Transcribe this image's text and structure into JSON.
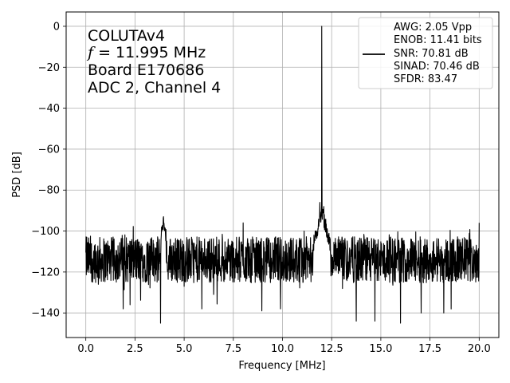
{
  "chart_data": {
    "type": "line",
    "xlabel": "Frequency [MHz]",
    "ylabel": "PSD [dB]",
    "xlim": [
      -1.0,
      21.0
    ],
    "ylim": [
      -152,
      7
    ],
    "xticks": [
      0.0,
      2.5,
      5.0,
      7.5,
      10.0,
      12.5,
      15.0,
      17.5,
      20.0
    ],
    "xtick_labels": [
      "0.0",
      "2.5",
      "5.0",
      "7.5",
      "10.0",
      "12.5",
      "15.0",
      "17.5",
      "20.0"
    ],
    "yticks": [
      0,
      -20,
      -40,
      -60,
      -80,
      -100,
      -120,
      -140
    ],
    "ytick_labels": [
      "0",
      "−20",
      "−40",
      "−60",
      "−80",
      "−100",
      "−120",
      "−140"
    ],
    "grid": true,
    "legend": {
      "placement": "upper-right",
      "entries": [
        "AWG: 2.05 Vpp",
        "ENOB: 11.41 bits",
        "SNR: 70.81 dB",
        "SINAD: 70.46 dB",
        "SFDR: 83.47"
      ]
    },
    "annotation": {
      "line1": "COLUTAv4",
      "line2_italic": "f",
      "line2_rest": " = 11.995 MHz",
      "line3": "Board E170686",
      "line4": "ADC 2, Channel 4"
    },
    "series": [
      {
        "color": "#000000",
        "noise_floor_db": -114,
        "noise_band_db": [
          -128,
          -103
        ],
        "x_range": [
          0.0,
          20.0
        ],
        "features": [
          {
            "x": 11.995,
            "y": 0
          },
          {
            "x": 11.9,
            "y": -86
          },
          {
            "x": 12.1,
            "y": -88
          },
          {
            "x": 3.95,
            "y": -93
          },
          {
            "x": 3.85,
            "y": -98
          },
          {
            "x": 8.0,
            "y": -96
          },
          {
            "x": 20.0,
            "y": -96
          },
          {
            "x": 0.05,
            "y": -103
          },
          {
            "x": 3.8,
            "y": -145
          },
          {
            "x": 14.7,
            "y": -144
          },
          {
            "x": 16.0,
            "y": -145
          },
          {
            "x": 1.9,
            "y": -138
          },
          {
            "x": 2.25,
            "y": -136
          },
          {
            "x": 5.9,
            "y": -138
          },
          {
            "x": 8.95,
            "y": -139
          },
          {
            "x": 9.9,
            "y": -138
          },
          {
            "x": 13.75,
            "y": -144
          },
          {
            "x": 17.05,
            "y": -140
          },
          {
            "x": 18.2,
            "y": -140
          },
          {
            "x": 11.1,
            "y": -100
          }
        ]
      }
    ]
  }
}
